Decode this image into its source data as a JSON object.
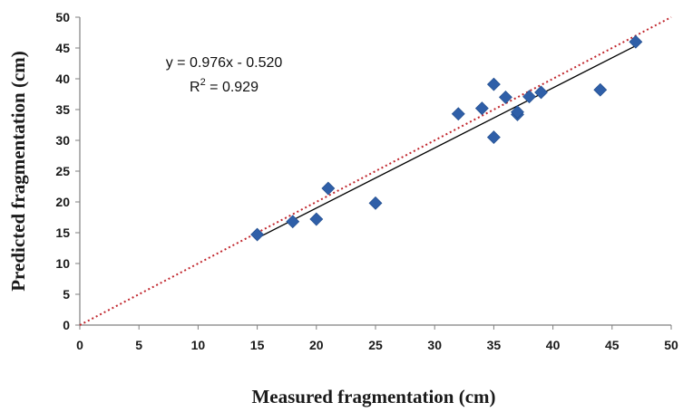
{
  "chart_data": {
    "type": "scatter",
    "xlabel": "Measured fragmentation (cm)",
    "ylabel": "Predicted fragmentation (cm)",
    "xlim": [
      0,
      50
    ],
    "ylim": [
      0,
      50
    ],
    "x_ticks": [
      "0",
      "5",
      "10",
      "15",
      "20",
      "25",
      "30",
      "35",
      "40",
      "45",
      "50"
    ],
    "y_ticks": [
      "0",
      "5",
      "10",
      "15",
      "20",
      "25",
      "30",
      "35",
      "40",
      "45",
      "50"
    ],
    "grid": false,
    "points": [
      {
        "x": 15,
        "y": 14.7
      },
      {
        "x": 18,
        "y": 16.8
      },
      {
        "x": 20,
        "y": 17.2
      },
      {
        "x": 21,
        "y": 22.2
      },
      {
        "x": 25,
        "y": 19.8
      },
      {
        "x": 32,
        "y": 34.3
      },
      {
        "x": 34,
        "y": 35.2
      },
      {
        "x": 35,
        "y": 39.1
      },
      {
        "x": 35,
        "y": 30.5
      },
      {
        "x": 36,
        "y": 37.0
      },
      {
        "x": 37,
        "y": 34.2
      },
      {
        "x": 37,
        "y": 34.6
      },
      {
        "x": 38,
        "y": 37.1
      },
      {
        "x": 39,
        "y": 37.8
      },
      {
        "x": 44,
        "y": 38.2
      },
      {
        "x": 47,
        "y": 46.0
      }
    ],
    "trendline": {
      "slope": 0.976,
      "intercept": -0.52,
      "x_range": [
        15,
        47
      ]
    },
    "reference_line": {
      "slope": 1,
      "intercept": 0,
      "x_range": [
        0,
        50
      ],
      "style": "dotted"
    },
    "annotations": {
      "equation": "y = 0.976x - 0.520",
      "r2_label": "R",
      "r2_sup": "2",
      "r2_value": " = 0.929"
    },
    "colors": {
      "marker": "#2f5fa8",
      "trendline": "#000000",
      "reference_line": "#c0262d",
      "axis": "#7f7f7f"
    }
  }
}
